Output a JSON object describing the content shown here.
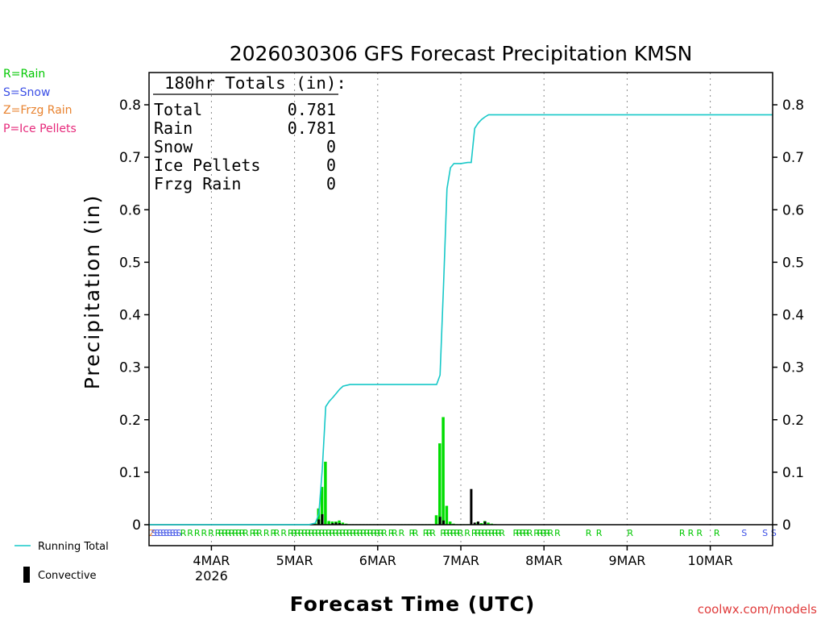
{
  "chart_data": {
    "type": "bar+line",
    "title": "2026030306 GFS Forecast Precipitation KMSN",
    "xlabel": "Forecast Time (UTC)",
    "ylabel": "Precipitation (in)",
    "ylim": [
      0,
      0.86
    ],
    "y_ticks": [
      0,
      0.1,
      0.2,
      0.3,
      0.4,
      0.5,
      0.6,
      0.7,
      0.8
    ],
    "y_tick_labels": [
      "0",
      "0.1",
      "0.2",
      "0.3",
      "0.4",
      "0.5",
      "0.6",
      "0.7",
      "0.8"
    ],
    "x_unit": "forecast hour",
    "xlim": [
      0,
      180
    ],
    "x_ticks": [
      {
        "hour": 18,
        "label": "4MAR",
        "sub": "2026"
      },
      {
        "hour": 42,
        "label": "5MAR",
        "sub": ""
      },
      {
        "hour": 66,
        "label": "6MAR",
        "sub": ""
      },
      {
        "hour": 90,
        "label": "7MAR",
        "sub": ""
      },
      {
        "hour": 114,
        "label": "8MAR",
        "sub": ""
      },
      {
        "hour": 138,
        "label": "9MAR",
        "sub": ""
      },
      {
        "hour": 162,
        "label": "10MAR",
        "sub": ""
      }
    ],
    "totals_box": {
      "heading": "180hr Totals (in):",
      "rows": [
        {
          "label": "Total",
          "value": "0.781"
        },
        {
          "label": "Rain",
          "value": "0.781"
        },
        {
          "label": "Snow",
          "value": "0"
        },
        {
          "label": "Ice Pellets",
          "value": "0"
        },
        {
          "label": "Frzg Rain",
          "value": "0"
        }
      ]
    },
    "series": [
      {
        "name": "Precipitation bars",
        "color": "#00dd00",
        "hours": [
          47,
          48,
          49,
          50,
          51,
          52,
          53,
          54,
          55,
          56,
          57,
          58,
          59,
          60,
          61,
          62,
          63,
          64,
          65,
          66,
          67,
          68,
          69,
          70,
          71,
          72,
          73,
          74,
          75,
          76,
          77,
          78,
          79,
          80,
          81,
          82,
          83,
          84,
          85,
          86,
          87,
          88,
          89,
          90,
          91,
          92,
          93,
          94,
          95,
          96,
          97,
          98,
          99,
          100
        ],
        "values": [
          0.001,
          0.003,
          0.031,
          0.072,
          0.12,
          0.007,
          0.006,
          0.006,
          0.008,
          0.004,
          0.002,
          0.001,
          0.001,
          0.001,
          0.001,
          0.001,
          0.001,
          0.001,
          0.001,
          0.001,
          0.001,
          0.001,
          0.001,
          0.001,
          0.001,
          0.001,
          0.001,
          0.001,
          0.001,
          0.001,
          0.001,
          0.001,
          0.001,
          0.001,
          0.001,
          0.001,
          0.018,
          0.155,
          0.205,
          0.036,
          0.006,
          0.002,
          0.001,
          0.001,
          0.001,
          0.001,
          0.001,
          0.001,
          0.005,
          0.003,
          0.007,
          0.004,
          0.002,
          0.001
        ]
      },
      {
        "name": "Convective",
        "color": "#000000",
        "hours": [
          47,
          49,
          50,
          53,
          54,
          55,
          84,
          85,
          93,
          94,
          95,
          97
        ],
        "values": [
          0.001,
          0.01,
          0.02,
          0.003,
          0.004,
          0.003,
          0.015,
          0.008,
          0.068,
          0.004,
          0.006,
          0.006
        ]
      },
      {
        "name": "Running Total",
        "color": "#17c8c8",
        "x": [
          0,
          46,
          48,
          49,
          50,
          51,
          52,
          53,
          54,
          55,
          56,
          58,
          60,
          66,
          72,
          80,
          83,
          84,
          85,
          86,
          87,
          88,
          90,
          92,
          93,
          94,
          95,
          96,
          97,
          98,
          180
        ],
        "y": [
          0,
          0,
          0.003,
          0.02,
          0.105,
          0.225,
          0.235,
          0.242,
          0.25,
          0.258,
          0.264,
          0.267,
          0.267,
          0.267,
          0.267,
          0.267,
          0.267,
          0.285,
          0.455,
          0.64,
          0.68,
          0.688,
          0.688,
          0.69,
          0.69,
          0.755,
          0.765,
          0.772,
          0.777,
          0.781,
          0.781
        ]
      }
    ],
    "ptype_types": {
      "R": {
        "label": "R=Rain",
        "color": "#00c800"
      },
      "S": {
        "label": "S=Snow",
        "color": "#3c50e6"
      },
      "Z": {
        "label": "Z=Frzg Rain",
        "color": "#e8822e"
      },
      "P": {
        "label": "P=Ice Pellets",
        "color": "#e6287a"
      }
    },
    "ptype_strip": [
      {
        "hour": 0.0,
        "type": "Z"
      },
      {
        "hour": 0.6,
        "type": "S"
      },
      {
        "hour": 1.5,
        "type": "S"
      },
      {
        "hour": 2.4,
        "type": "S"
      },
      {
        "hour": 3.3,
        "type": "S"
      },
      {
        "hour": 4.2,
        "type": "S"
      },
      {
        "hour": 5.1,
        "type": "S"
      },
      {
        "hour": 6.0,
        "type": "S"
      },
      {
        "hour": 6.9,
        "type": "S"
      },
      {
        "hour": 7.8,
        "type": "S"
      },
      {
        "hour": 9.0,
        "type": "R"
      },
      {
        "hour": 11.0,
        "type": "R"
      },
      {
        "hour": 13.0,
        "type": "R"
      },
      {
        "hour": 15.0,
        "type": "R"
      },
      {
        "hour": 17.0,
        "type": "R"
      },
      {
        "hour": 19.0,
        "type": "R"
      },
      {
        "hour": 20.0,
        "type": "R"
      },
      {
        "hour": 21.0,
        "type": "R"
      },
      {
        "hour": 22.0,
        "type": "R"
      },
      {
        "hour": 23.0,
        "type": "R"
      },
      {
        "hour": 24.0,
        "type": "R"
      },
      {
        "hour": 25.0,
        "type": "R"
      },
      {
        "hour": 26.0,
        "type": "R"
      },
      {
        "hour": 27.0,
        "type": "R"
      },
      {
        "hour": 29.0,
        "type": "R"
      },
      {
        "hour": 30.0,
        "type": "R"
      },
      {
        "hour": 31.0,
        "type": "R"
      },
      {
        "hour": 33.0,
        "type": "R"
      },
      {
        "hour": 35.0,
        "type": "R"
      },
      {
        "hour": 36.0,
        "type": "R"
      },
      {
        "hour": 38.0,
        "type": "R"
      },
      {
        "hour": 40.0,
        "type": "R"
      },
      {
        "hour": 41.0,
        "type": "R"
      },
      {
        "hour": 42.0,
        "type": "R"
      },
      {
        "hour": 43.0,
        "type": "R"
      },
      {
        "hour": 44.0,
        "type": "R"
      },
      {
        "hour": 45.0,
        "type": "R"
      },
      {
        "hour": 46.0,
        "type": "R"
      },
      {
        "hour": 47.0,
        "type": "R"
      },
      {
        "hour": 48.0,
        "type": "R"
      },
      {
        "hour": 49.0,
        "type": "R"
      },
      {
        "hour": 50.0,
        "type": "R"
      },
      {
        "hour": 51.0,
        "type": "R"
      },
      {
        "hour": 52.0,
        "type": "R"
      },
      {
        "hour": 53.0,
        "type": "R"
      },
      {
        "hour": 54.0,
        "type": "R"
      },
      {
        "hour": 55.0,
        "type": "R"
      },
      {
        "hour": 56.0,
        "type": "R"
      },
      {
        "hour": 57.0,
        "type": "R"
      },
      {
        "hour": 58.0,
        "type": "R"
      },
      {
        "hour": 59.0,
        "type": "R"
      },
      {
        "hour": 60.0,
        "type": "R"
      },
      {
        "hour": 61.0,
        "type": "R"
      },
      {
        "hour": 62.0,
        "type": "R"
      },
      {
        "hour": 63.0,
        "type": "R"
      },
      {
        "hour": 64.0,
        "type": "R"
      },
      {
        "hour": 65.0,
        "type": "R"
      },
      {
        "hour": 66.0,
        "type": "R"
      },
      {
        "hour": 67.0,
        "type": "R"
      },
      {
        "hour": 69.0,
        "type": "R"
      },
      {
        "hour": 70.0,
        "type": "R"
      },
      {
        "hour": 72.0,
        "type": "R"
      },
      {
        "hour": 75.0,
        "type": "R"
      },
      {
        "hour": 76.0,
        "type": "R"
      },
      {
        "hour": 79.0,
        "type": "R"
      },
      {
        "hour": 80.0,
        "type": "R"
      },
      {
        "hour": 81.0,
        "type": "R"
      },
      {
        "hour": 84.0,
        "type": "R"
      },
      {
        "hour": 85.0,
        "type": "R"
      },
      {
        "hour": 86.0,
        "type": "R"
      },
      {
        "hour": 87.0,
        "type": "R"
      },
      {
        "hour": 88.0,
        "type": "R"
      },
      {
        "hour": 89.0,
        "type": "R"
      },
      {
        "hour": 91.0,
        "type": "R"
      },
      {
        "hour": 93.0,
        "type": "R"
      },
      {
        "hour": 94.0,
        "type": "R"
      },
      {
        "hour": 95.0,
        "type": "R"
      },
      {
        "hour": 96.0,
        "type": "R"
      },
      {
        "hour": 97.0,
        "type": "R"
      },
      {
        "hour": 98.0,
        "type": "R"
      },
      {
        "hour": 99.0,
        "type": "R"
      },
      {
        "hour": 100.0,
        "type": "R"
      },
      {
        "hour": 101.0,
        "type": "R"
      },
      {
        "hour": 105.0,
        "type": "R"
      },
      {
        "hour": 106.0,
        "type": "R"
      },
      {
        "hour": 107.0,
        "type": "R"
      },
      {
        "hour": 108.0,
        "type": "R"
      },
      {
        "hour": 109.0,
        "type": "R"
      },
      {
        "hour": 111.0,
        "type": "R"
      },
      {
        "hour": 112.0,
        "type": "R"
      },
      {
        "hour": 113.0,
        "type": "R"
      },
      {
        "hour": 114.0,
        "type": "R"
      },
      {
        "hour": 115.0,
        "type": "R"
      },
      {
        "hour": 117.0,
        "type": "R"
      },
      {
        "hour": 126.0,
        "type": "R"
      },
      {
        "hour": 129.0,
        "type": "R"
      },
      {
        "hour": 138.0,
        "type": "R"
      },
      {
        "hour": 153.0,
        "type": "R"
      },
      {
        "hour": 155.5,
        "type": "R"
      },
      {
        "hour": 158.0,
        "type": "R"
      },
      {
        "hour": 163.0,
        "type": "R"
      },
      {
        "hour": 171.0,
        "type": "S"
      },
      {
        "hour": 177.0,
        "type": "S"
      },
      {
        "hour": 179.5,
        "type": "S"
      }
    ]
  },
  "legend_bottom": {
    "running_total_label": "Running Total",
    "convective_label": "Convective"
  },
  "credit": "coolwx.com/models"
}
